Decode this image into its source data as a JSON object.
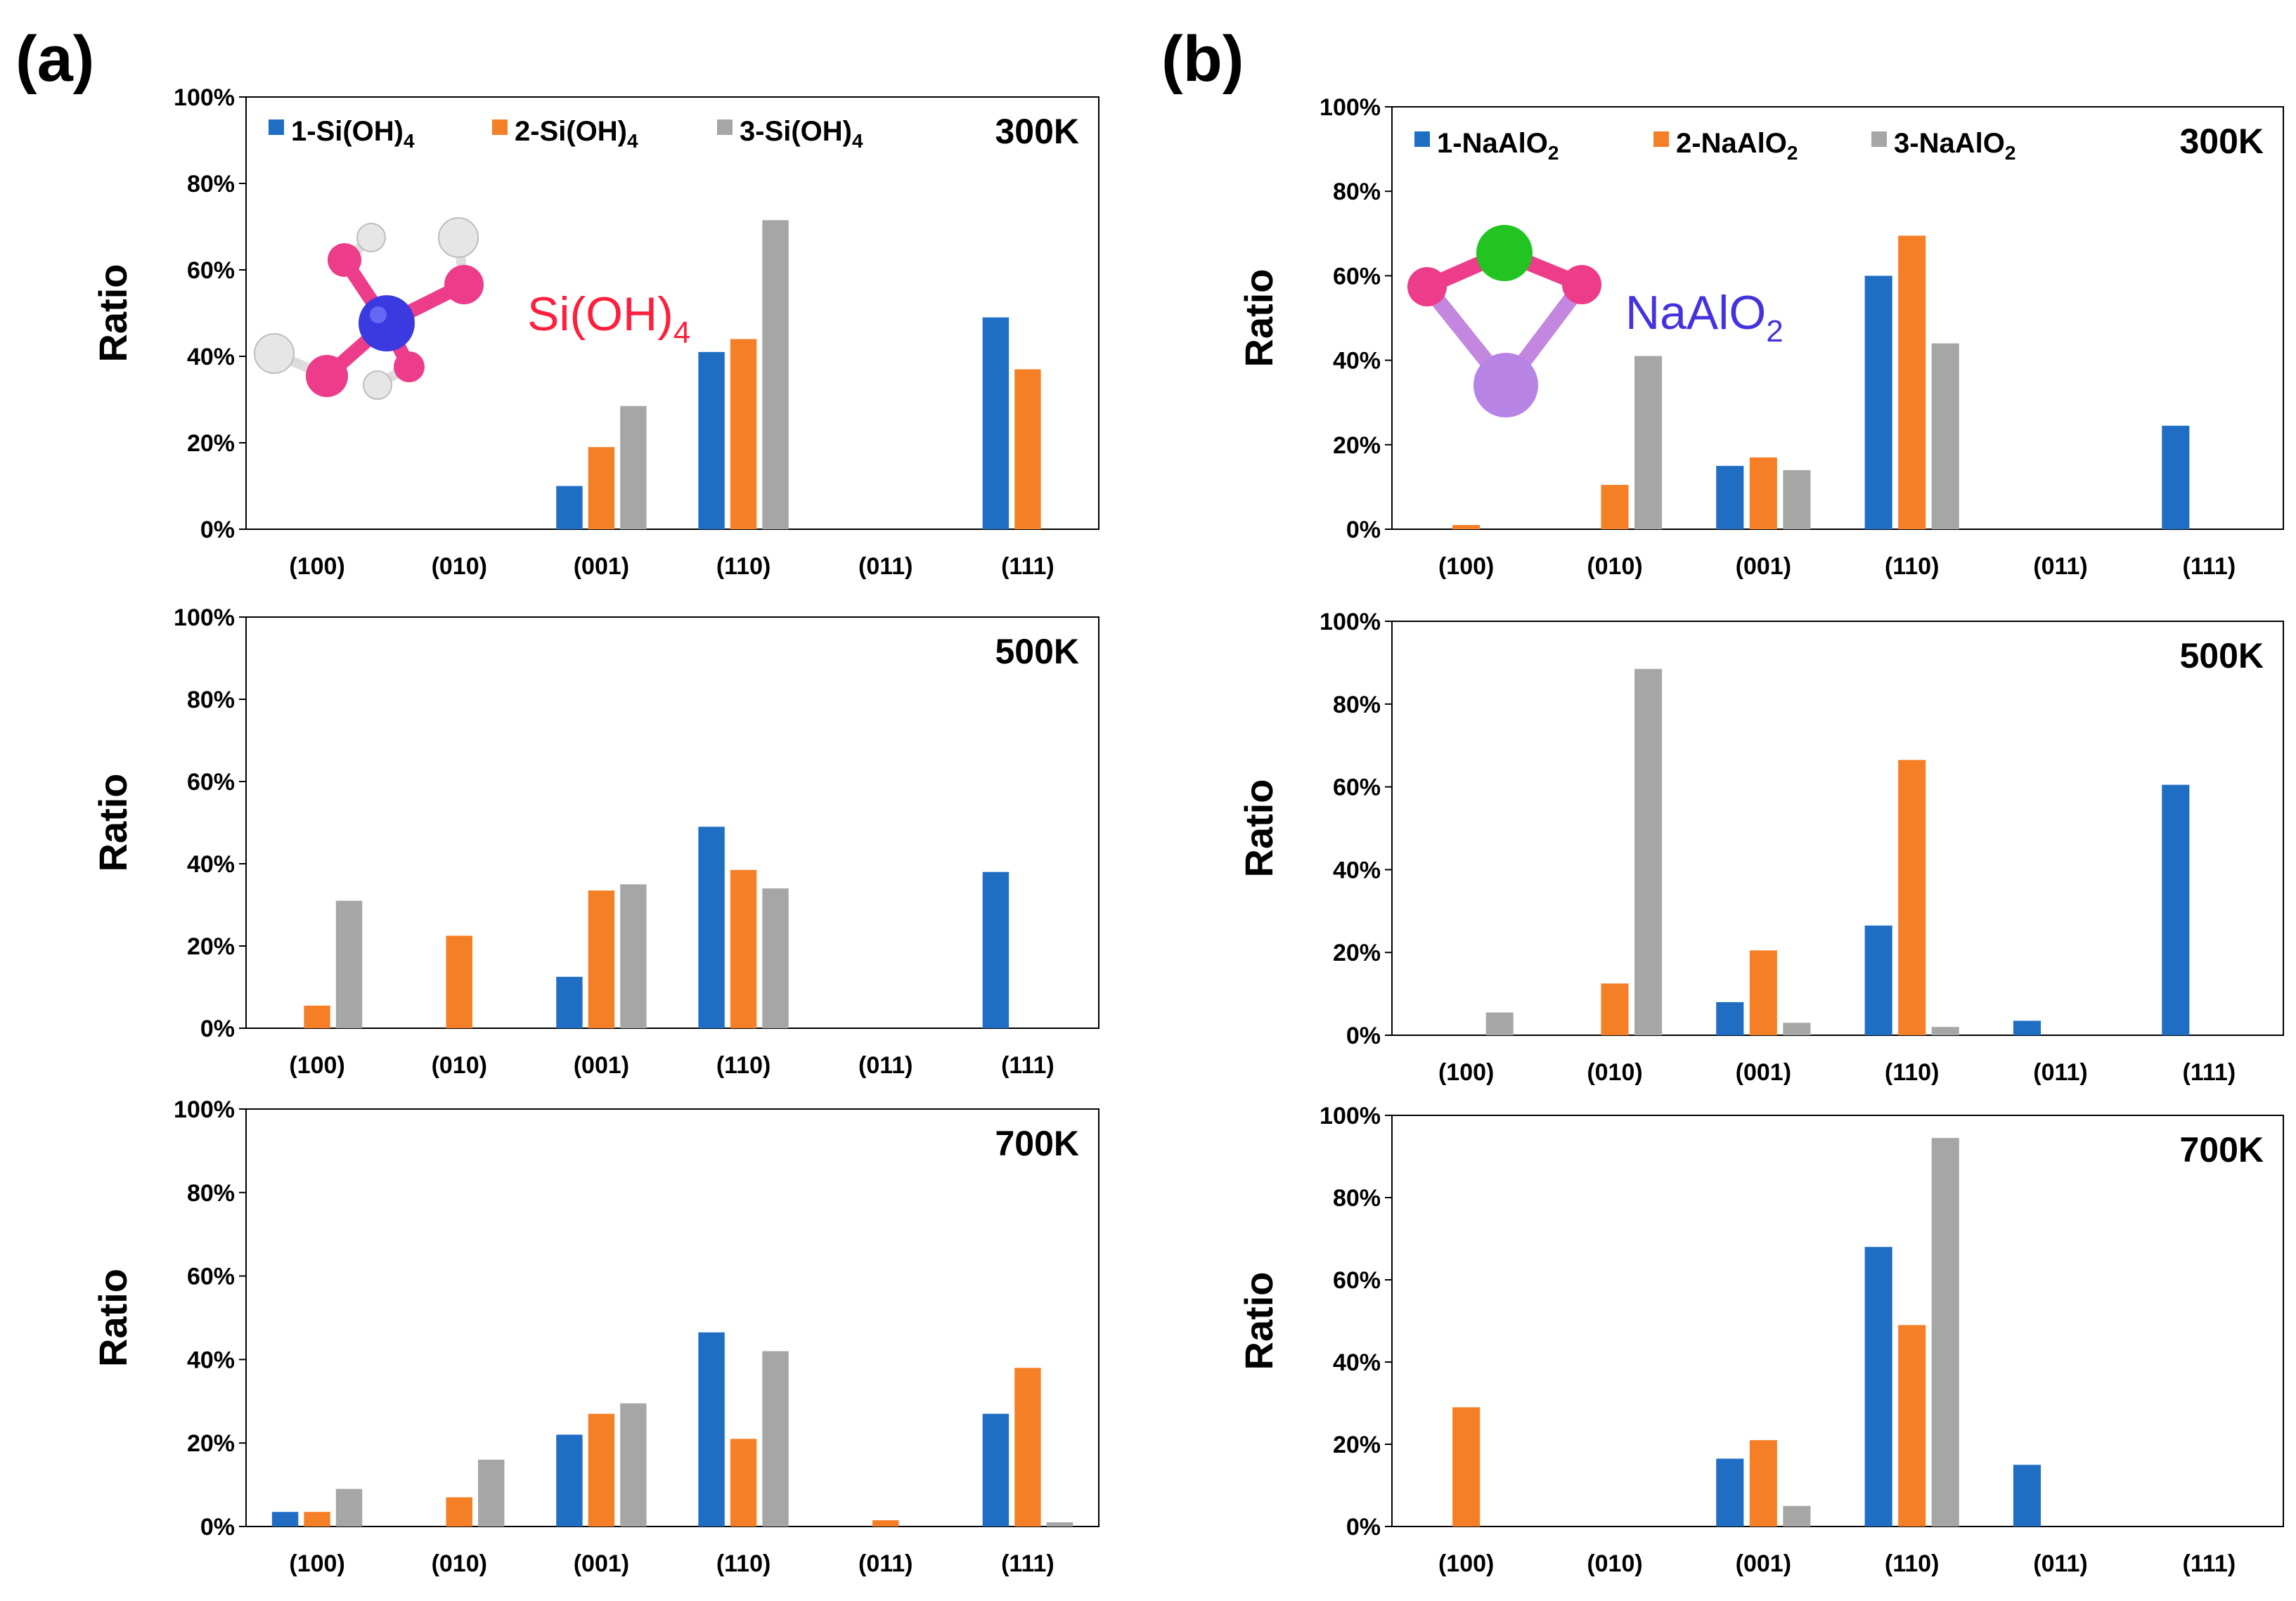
{
  "panels": [
    {
      "label": "(a)",
      "molecule_label": "Si(OH)4",
      "molecule_label_color": "#ff1f3d",
      "legend": [
        "1-Si(OH)4",
        "2-Si(OH)4",
        "3-Si(OH)4"
      ]
    },
    {
      "label": "(b)",
      "molecule_label": "NaAlO2",
      "molecule_label_color": "#4433dd",
      "legend": [
        "1-NaAlO2",
        "2-NaAlO2",
        "3-NaAlO2"
      ]
    }
  ],
  "colors": {
    "series1": "#1f6ec4",
    "series2": "#f57f26",
    "series3": "#a6a6a6",
    "axis": "#000000"
  },
  "chart_data": [
    {
      "type": "bar",
      "panel": "(a)",
      "title": "300K",
      "ylabel": "Ratio",
      "ylim": [
        0,
        100
      ],
      "yticks": [
        "0%",
        "20%",
        "40%",
        "60%",
        "80%",
        "100%"
      ],
      "categories": [
        "(100)",
        "(010)",
        "(001)",
        "(110)",
        "(011)",
        "(111)"
      ],
      "series": [
        {
          "name": "1-Si(OH)4",
          "values": [
            0,
            0,
            10,
            41,
            0,
            49
          ]
        },
        {
          "name": "2-Si(OH)4",
          "values": [
            0,
            0,
            19,
            44,
            0,
            37
          ]
        },
        {
          "name": "3-Si(OH)4",
          "values": [
            0,
            0,
            28.5,
            71.5,
            0,
            0
          ]
        }
      ]
    },
    {
      "type": "bar",
      "panel": "(a)",
      "title": "500K",
      "ylabel": "Ratio",
      "ylim": [
        0,
        100
      ],
      "yticks": [
        "0%",
        "20%",
        "40%",
        "60%",
        "80%",
        "100%"
      ],
      "categories": [
        "(100)",
        "(010)",
        "(001)",
        "(110)",
        "(011)",
        "(111)"
      ],
      "series": [
        {
          "name": "1-Si(OH)4",
          "values": [
            0,
            0,
            12.5,
            49,
            0,
            38
          ]
        },
        {
          "name": "2-Si(OH)4",
          "values": [
            5.5,
            22.5,
            33.5,
            38.5,
            0,
            0
          ]
        },
        {
          "name": "3-Si(OH)4",
          "values": [
            31,
            0,
            35,
            34,
            0,
            0
          ]
        }
      ]
    },
    {
      "type": "bar",
      "panel": "(a)",
      "title": "700K",
      "ylabel": "Ratio",
      "ylim": [
        0,
        100
      ],
      "yticks": [
        "0%",
        "20%",
        "40%",
        "60%",
        "80%",
        "100%"
      ],
      "categories": [
        "(100)",
        "(010)",
        "(001)",
        "(110)",
        "(011)",
        "(111)"
      ],
      "series": [
        {
          "name": "1-Si(OH)4",
          "values": [
            3.5,
            0,
            22,
            46.5,
            0,
            27
          ]
        },
        {
          "name": "2-Si(OH)4",
          "values": [
            3.5,
            7,
            27,
            21,
            1.5,
            38
          ]
        },
        {
          "name": "3-Si(OH)4",
          "values": [
            9,
            16,
            29.5,
            42,
            0,
            1
          ]
        }
      ]
    },
    {
      "type": "bar",
      "panel": "(b)",
      "title": "300K",
      "ylabel": "Ratio",
      "ylim": [
        0,
        100
      ],
      "yticks": [
        "0%",
        "20%",
        "40%",
        "60%",
        "80%",
        "100%"
      ],
      "categories": [
        "(100)",
        "(010)",
        "(001)",
        "(110)",
        "(011)",
        "(111)"
      ],
      "series": [
        {
          "name": "1-NaAlO2",
          "values": [
            0,
            0,
            15,
            60,
            0,
            24.5
          ]
        },
        {
          "name": "2-NaAlO2",
          "values": [
            1,
            10.5,
            17,
            69.5,
            0,
            0
          ]
        },
        {
          "name": "3-NaAlO2",
          "values": [
            0,
            41,
            14,
            44,
            0,
            0
          ]
        }
      ]
    },
    {
      "type": "bar",
      "panel": "(b)",
      "title": "500K",
      "ylabel": "Ratio",
      "ylim": [
        0,
        100
      ],
      "yticks": [
        "0%",
        "20%",
        "40%",
        "60%",
        "80%",
        "100%"
      ],
      "categories": [
        "(100)",
        "(010)",
        "(001)",
        "(110)",
        "(011)",
        "(111)"
      ],
      "series": [
        {
          "name": "1-NaAlO2",
          "values": [
            0,
            0,
            8,
            26.5,
            3.5,
            60.5
          ]
        },
        {
          "name": "2-NaAlO2",
          "values": [
            0,
            12.5,
            20.5,
            66.5,
            0,
            0
          ]
        },
        {
          "name": "3-NaAlO2",
          "values": [
            5.5,
            88.5,
            3,
            2,
            0,
            0
          ]
        }
      ]
    },
    {
      "type": "bar",
      "panel": "(b)",
      "title": "700K",
      "ylabel": "Ratio",
      "ylim": [
        0,
        100
      ],
      "yticks": [
        "0%",
        "20%",
        "40%",
        "60%",
        "80%",
        "100%"
      ],
      "categories": [
        "(100)",
        "(010)",
        "(001)",
        "(110)",
        "(011)",
        "(111)"
      ],
      "series": [
        {
          "name": "1-NaAlO2",
          "values": [
            0,
            0,
            16.5,
            68,
            15,
            0
          ]
        },
        {
          "name": "2-NaAlO2",
          "values": [
            29,
            0,
            21,
            49,
            0,
            0
          ]
        },
        {
          "name": "3-NaAlO2",
          "values": [
            0,
            0,
            5,
            94.5,
            0,
            0
          ]
        }
      ]
    }
  ]
}
